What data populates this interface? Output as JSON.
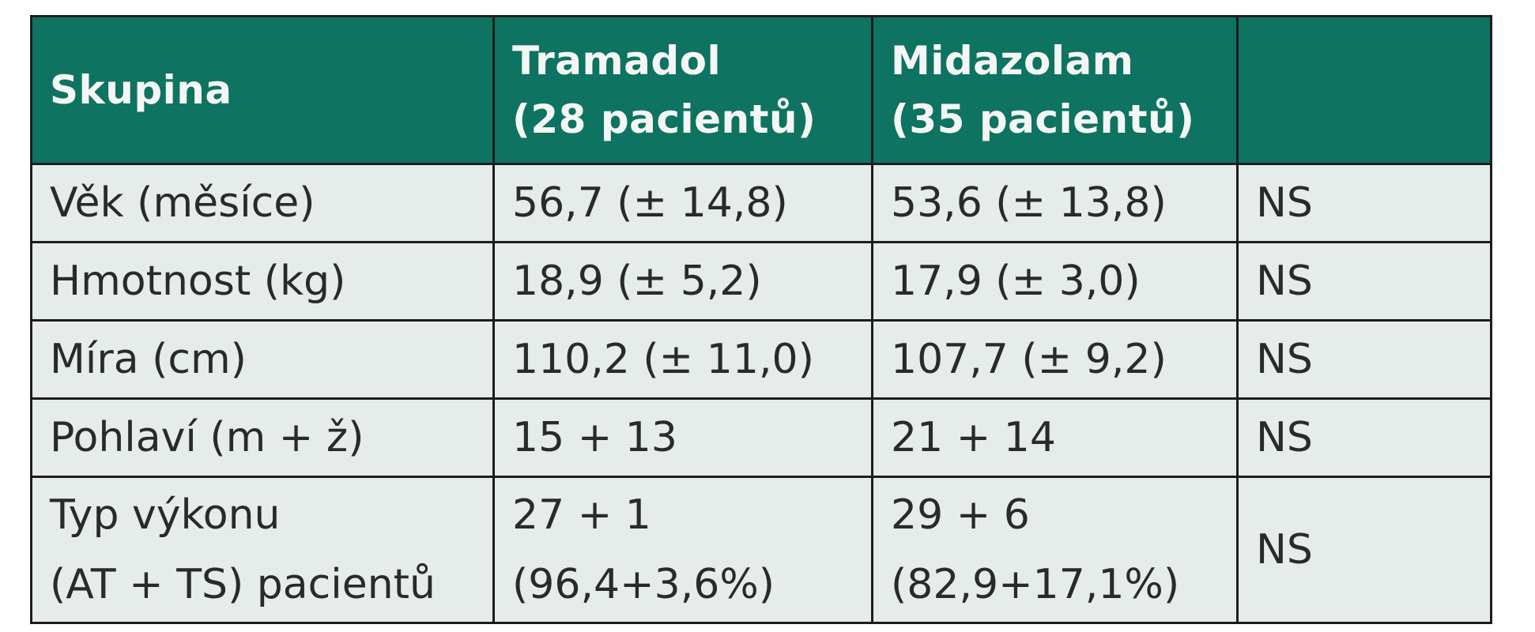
{
  "table": {
    "headers": [
      {
        "line1": "Skupina",
        "line2": ""
      },
      {
        "line1": "Tramadol",
        "line2": "(28 pacientů)"
      },
      {
        "line1": "Midazolam",
        "line2": "(35 pacientů)"
      },
      {
        "line1": "",
        "line2": ""
      }
    ],
    "rows": [
      {
        "label": "Věk (měsíce)",
        "tramadol": "56,7 (± 14,8)",
        "midazolam": "53,6 (± 13,8)",
        "significance": "NS"
      },
      {
        "label": "Hmotnost (kg)",
        "tramadol": "18,9 (± 5,2)",
        "midazolam": "17,9 (± 3,0)",
        "significance": "NS"
      },
      {
        "label": "Míra (cm)",
        "tramadol": "110,2 (± 11,0)",
        "midazolam": "107,7 (± 9,2)",
        "significance": "NS"
      },
      {
        "label": "Pohlaví (m + ž)",
        "tramadol": "15 + 13",
        "midazolam": "21 + 14",
        "significance": "NS"
      },
      {
        "label_line1": "Typ výkonu",
        "label_line2": "(AT + TS) pacientů",
        "tramadol_line1": "27 + 1",
        "tramadol_line2": "(96,4+3,6%)",
        "midazolam_line1": "29 + 6",
        "midazolam_line2": "(82,9+17,1%)",
        "significance": "NS"
      }
    ]
  },
  "colors": {
    "header_bg": "#0e7361",
    "header_text": "#f4f6f4",
    "body_bg": "#e5ecea",
    "border": "#1d1d1d"
  }
}
